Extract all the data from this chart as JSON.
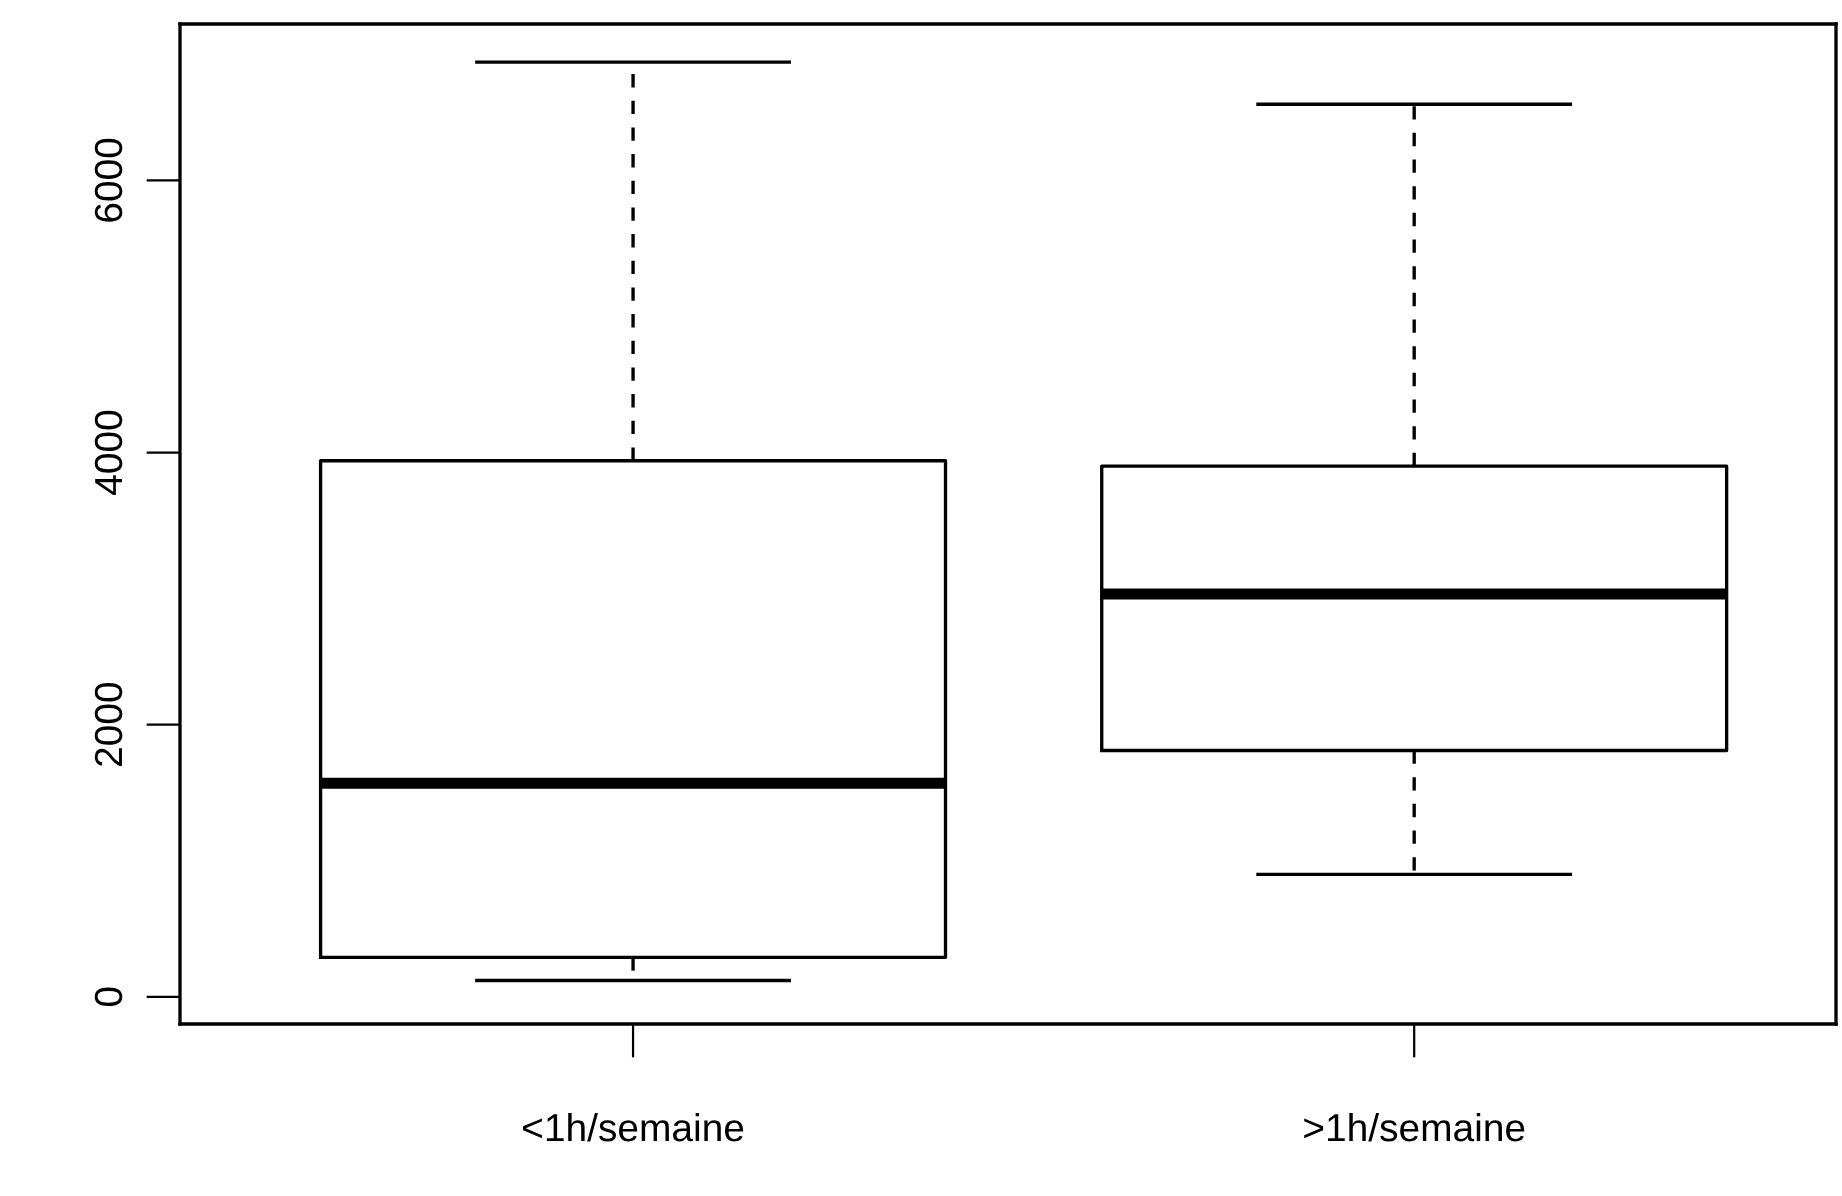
{
  "chart_data": {
    "type": "box",
    "categories": [
      "<1h/semaine",
      ">1h/semaine"
    ],
    "boxes": [
      {
        "low": 120,
        "q1": 290,
        "median": 1570,
        "q3": 3940,
        "high": 6870
      },
      {
        "low": 900,
        "q1": 1810,
        "median": 2960,
        "q3": 3900,
        "high": 6560
      }
    ],
    "ylim": [
      -200,
      7150
    ],
    "yticks": [
      0,
      2000,
      4000,
      6000
    ],
    "grid": false,
    "line_style": "dashed"
  }
}
